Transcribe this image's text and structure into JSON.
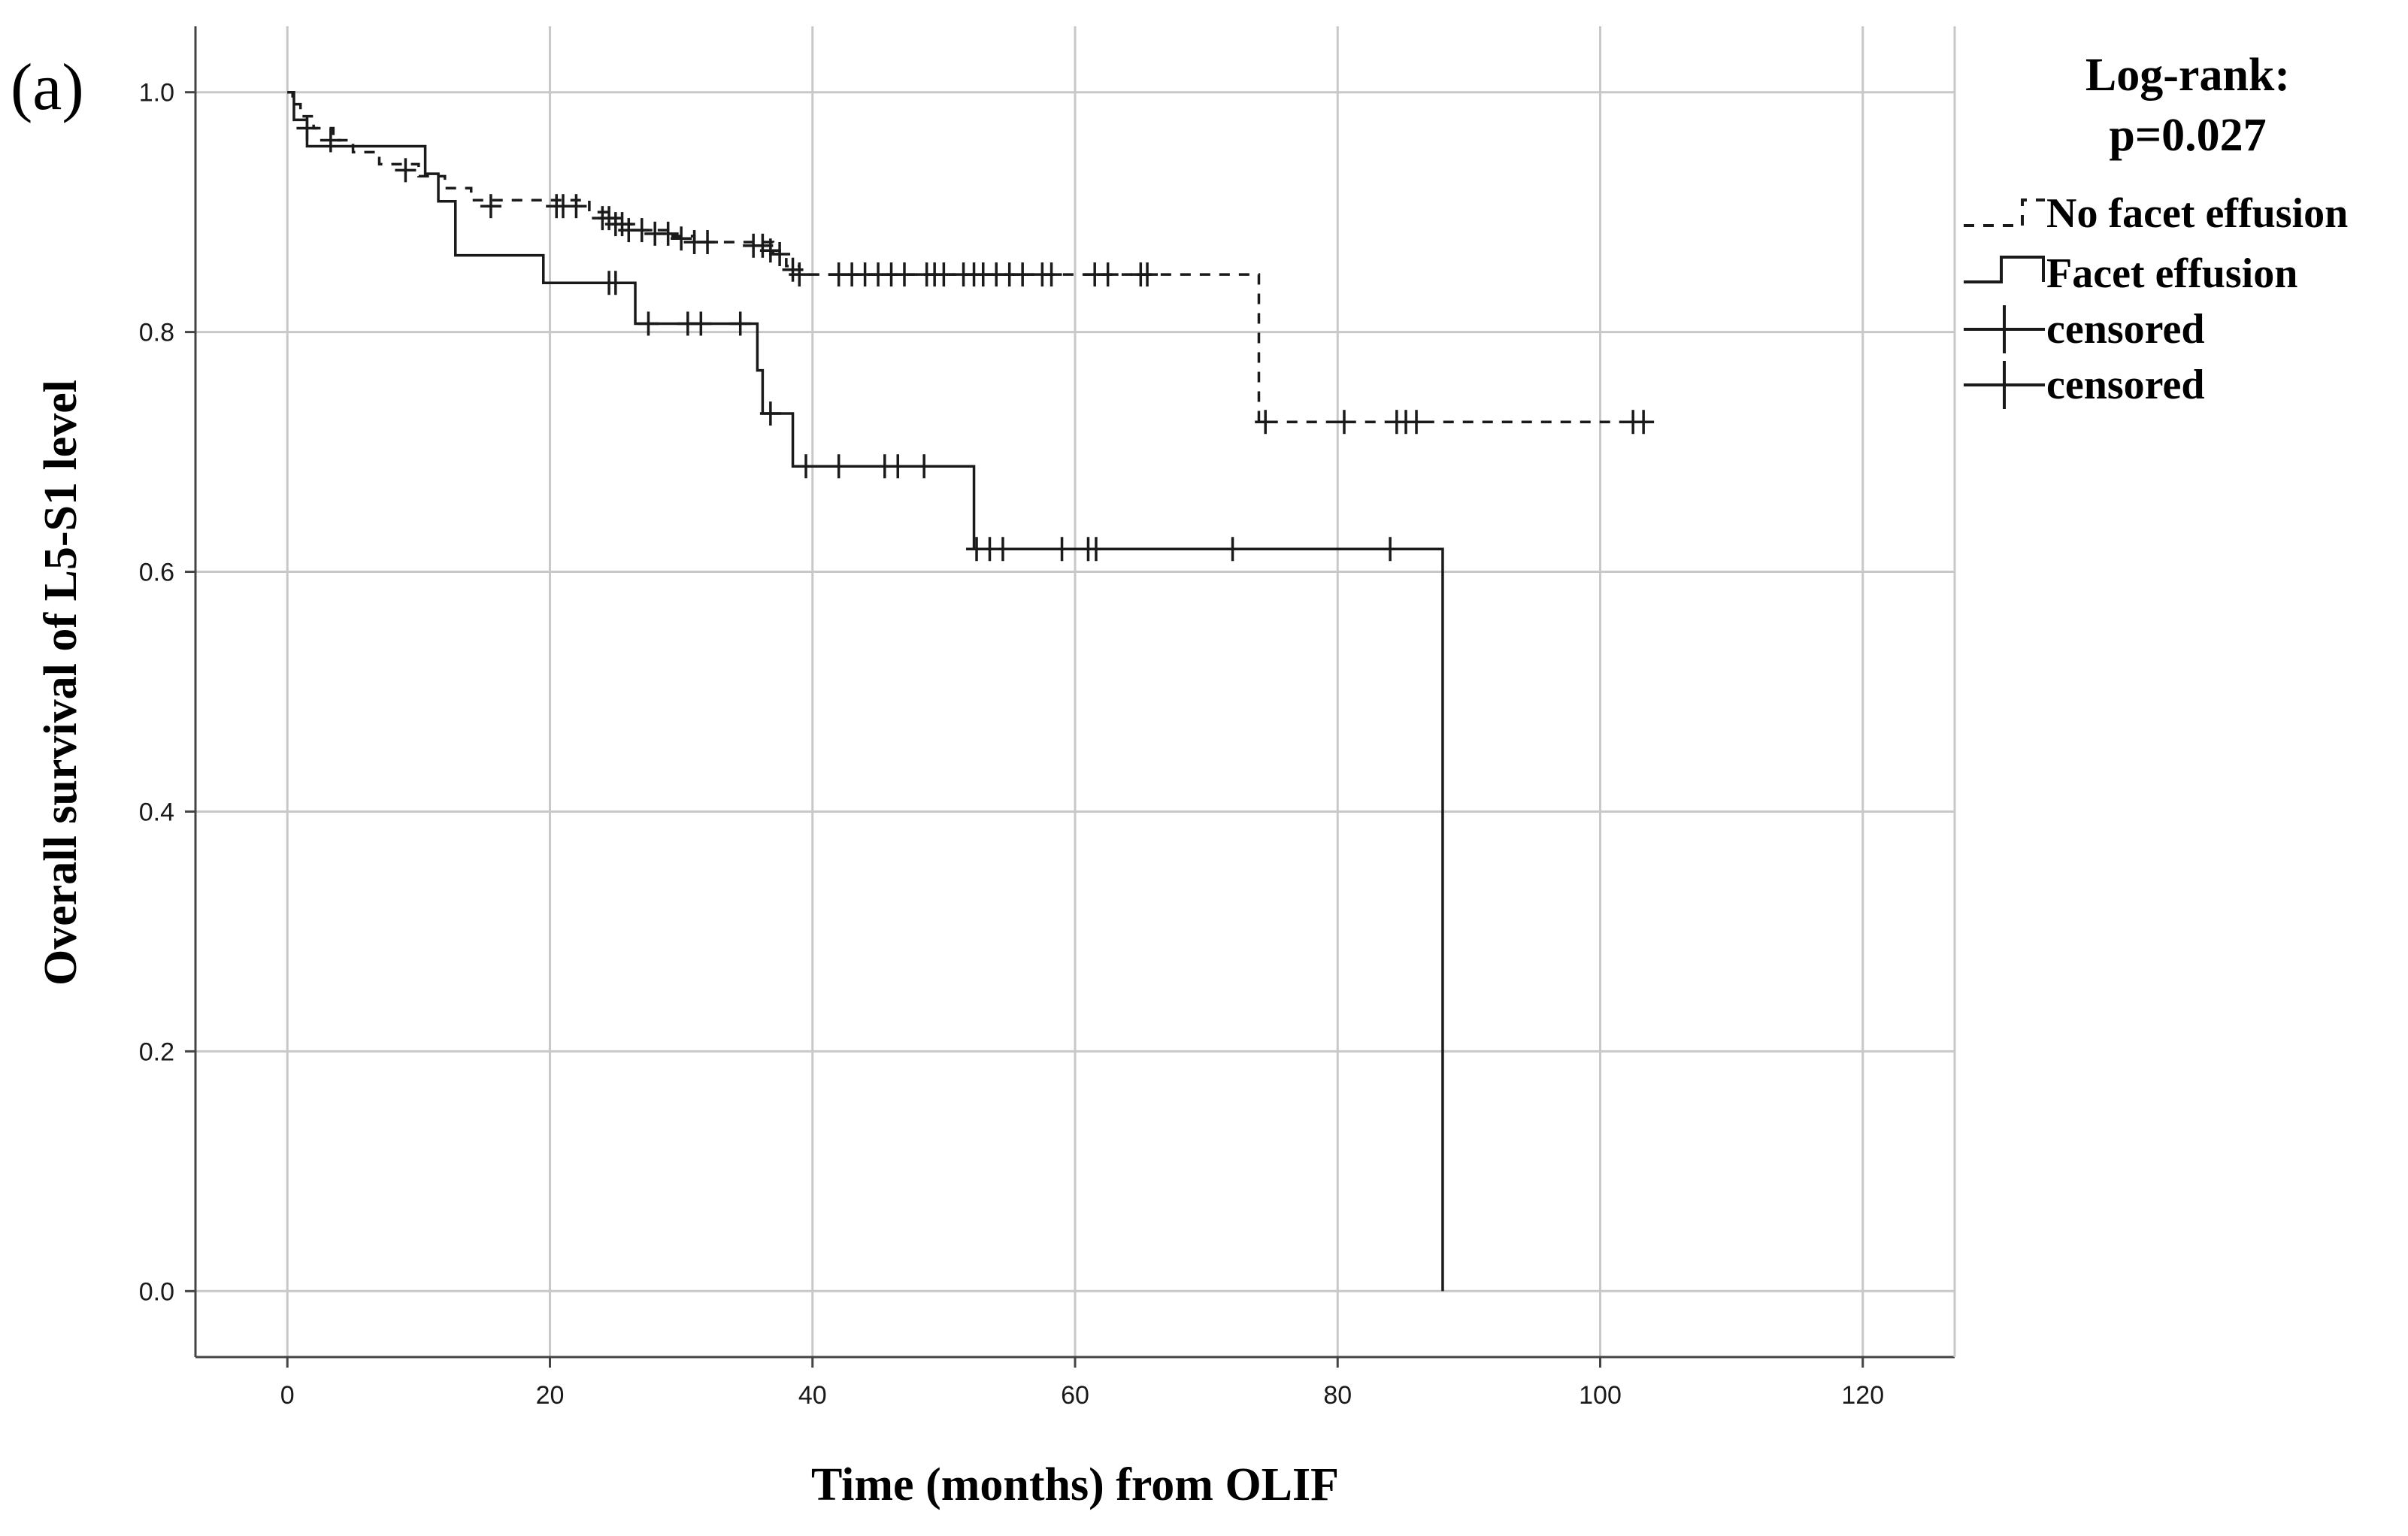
{
  "chart_data": {
    "type": "line",
    "subtype": "kaplan-meier",
    "panel_label": "(a)",
    "title": "",
    "xlabel": "Time (months) from OLIF",
    "ylabel": "Overall survival of L5-S1 level",
    "xlim": [
      -7,
      127
    ],
    "ylim": [
      -0.055,
      1.055
    ],
    "xticks": [
      0,
      20,
      40,
      60,
      80,
      100,
      120
    ],
    "yticks": [
      0.0,
      0.2,
      0.4,
      0.6,
      0.8,
      1.0
    ],
    "xtick_labels": [
      "0",
      "20",
      "40",
      "60",
      "80",
      "100",
      "120"
    ],
    "ytick_labels": [
      "0.0",
      "0.2",
      "0.4",
      "0.6",
      "0.8",
      "1.0"
    ],
    "grid": true,
    "legend_placement": "right",
    "annotation": {
      "line1": "Log-rank:",
      "line2": "p=0.027"
    },
    "legend": [
      {
        "label": "No facet effusion",
        "style": "dashed"
      },
      {
        "label": "Facet effusion",
        "style": "solid"
      },
      {
        "label": "censored",
        "style": "censor-mark"
      },
      {
        "label": "censored",
        "style": "censor-mark"
      }
    ],
    "series": [
      {
        "name": "No facet effusion",
        "style": "dashed",
        "color": "#1a1a1a",
        "steps": [
          [
            0,
            1.0
          ],
          [
            0.4,
            0.99
          ],
          [
            1.0,
            0.98
          ],
          [
            2.0,
            0.97
          ],
          [
            3.5,
            0.96
          ],
          [
            5.0,
            0.95
          ],
          [
            7.0,
            0.94
          ],
          [
            10.0,
            0.93
          ],
          [
            12.0,
            0.92
          ],
          [
            14.0,
            0.91
          ],
          [
            23.0,
            0.9
          ],
          [
            24.5,
            0.895
          ],
          [
            25.5,
            0.89
          ],
          [
            27.0,
            0.885
          ],
          [
            29.0,
            0.88
          ],
          [
            31.0,
            0.875
          ],
          [
            37.0,
            0.865
          ],
          [
            38.0,
            0.855
          ],
          [
            39.0,
            0.848
          ],
          [
            74.0,
            0.725
          ]
        ],
        "end_x": 104,
        "censored": [
          [
            1.5,
            0.97
          ],
          [
            3.3,
            0.96
          ],
          [
            9.0,
            0.935
          ],
          [
            15.5,
            0.905
          ],
          [
            20.5,
            0.905
          ],
          [
            21.0,
            0.905
          ],
          [
            22.0,
            0.905
          ],
          [
            24.0,
            0.895
          ],
          [
            24.5,
            0.895
          ],
          [
            25.0,
            0.89
          ],
          [
            25.5,
            0.89
          ],
          [
            26.0,
            0.885
          ],
          [
            27.0,
            0.885
          ],
          [
            28.0,
            0.882
          ],
          [
            29.0,
            0.882
          ],
          [
            30.0,
            0.878
          ],
          [
            31.0,
            0.875
          ],
          [
            32.0,
            0.875
          ],
          [
            35.5,
            0.872
          ],
          [
            36.2,
            0.872
          ],
          [
            36.8,
            0.868
          ],
          [
            37.5,
            0.865
          ],
          [
            38.5,
            0.852
          ],
          [
            39.0,
            0.848
          ],
          [
            42.0,
            0.848
          ],
          [
            43.0,
            0.848
          ],
          [
            44.0,
            0.848
          ],
          [
            45.0,
            0.848
          ],
          [
            46.0,
            0.848
          ],
          [
            47.0,
            0.848
          ],
          [
            48.7,
            0.848
          ],
          [
            49.3,
            0.848
          ],
          [
            50.0,
            0.848
          ],
          [
            51.5,
            0.848
          ],
          [
            52.3,
            0.848
          ],
          [
            53.0,
            0.848
          ],
          [
            54.0,
            0.848
          ],
          [
            55.0,
            0.848
          ],
          [
            56.0,
            0.848
          ],
          [
            57.5,
            0.848
          ],
          [
            58.2,
            0.848
          ],
          [
            61.5,
            0.848
          ],
          [
            62.5,
            0.848
          ],
          [
            65.0,
            0.848
          ],
          [
            65.5,
            0.848
          ],
          [
            74.5,
            0.725
          ],
          [
            80.5,
            0.725
          ],
          [
            84.5,
            0.725
          ],
          [
            85.2,
            0.725
          ],
          [
            86.0,
            0.725
          ],
          [
            102.5,
            0.725
          ],
          [
            103.3,
            0.725
          ]
        ]
      },
      {
        "name": "Facet effusion",
        "style": "solid",
        "color": "#1a1a1a",
        "steps": [
          [
            0,
            1.0
          ],
          [
            0.5,
            0.977
          ],
          [
            1.5,
            0.955
          ],
          [
            10.5,
            0.932
          ],
          [
            11.5,
            0.909
          ],
          [
            12.8,
            0.864
          ],
          [
            19.5,
            0.841
          ],
          [
            26.5,
            0.807
          ],
          [
            35.8,
            0.768
          ],
          [
            36.2,
            0.732
          ],
          [
            38.5,
            0.688
          ],
          [
            52.3,
            0.619
          ],
          [
            88.0,
            0.0
          ]
        ],
        "end_x": 88.0,
        "censored": [
          [
            24.5,
            0.841
          ],
          [
            25.0,
            0.841
          ],
          [
            27.5,
            0.807
          ],
          [
            30.5,
            0.807
          ],
          [
            31.5,
            0.807
          ],
          [
            34.5,
            0.807
          ],
          [
            36.8,
            0.732
          ],
          [
            39.5,
            0.688
          ],
          [
            42.0,
            0.688
          ],
          [
            45.5,
            0.688
          ],
          [
            46.5,
            0.688
          ],
          [
            48.5,
            0.688
          ],
          [
            52.5,
            0.619
          ],
          [
            53.5,
            0.619
          ],
          [
            54.5,
            0.619
          ],
          [
            59.0,
            0.619
          ],
          [
            61.0,
            0.619
          ],
          [
            61.6,
            0.619
          ],
          [
            72.0,
            0.619
          ],
          [
            84.0,
            0.619
          ]
        ]
      }
    ]
  }
}
